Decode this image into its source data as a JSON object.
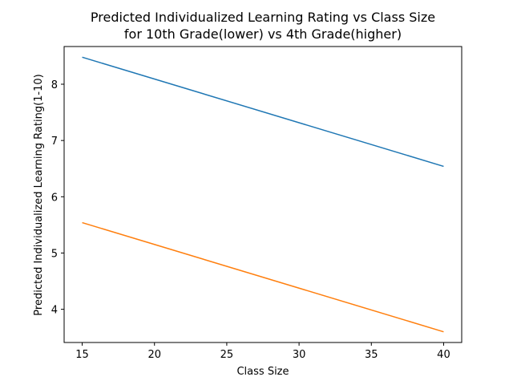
{
  "chart_data": {
    "type": "line",
    "title": [
      "Predicted Individualized Learning Rating vs Class Size",
      "for 10th Grade(lower) vs 4th Grade(higher)"
    ],
    "xlabel": "Class Size",
    "ylabel": "Predicted Individualized Learning Rating(1-10)",
    "xlim": [
      13.75,
      41.25
    ],
    "ylim": [
      3.41,
      8.67
    ],
    "xticks": [
      15,
      20,
      25,
      30,
      35,
      40
    ],
    "yticks": [
      4,
      5,
      6,
      7,
      8
    ],
    "grid": false,
    "series": [
      {
        "x": [
          15,
          40
        ],
        "y": [
          8.48,
          6.54
        ],
        "color": "#1f77b4"
      },
      {
        "x": [
          15,
          40
        ],
        "y": [
          5.54,
          3.6
        ],
        "color": "#ff7f0e"
      }
    ]
  }
}
